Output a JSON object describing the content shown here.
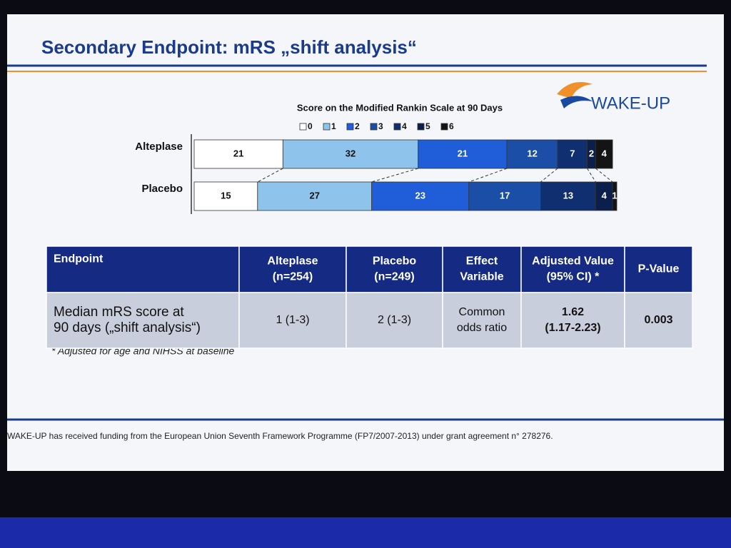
{
  "title": "Secondary Endpoint: mRS „shift analysis“",
  "logo": "WAKE-UP",
  "chart_data": {
    "type": "bar",
    "orientation": "horizontal",
    "stacked": true,
    "title": "Score on the Modified Rankin Scale at 90 Days",
    "categories": [
      "Alteplase",
      "Placebo"
    ],
    "series": [
      {
        "name": "0",
        "color": "#ffffff",
        "values": [
          21,
          15
        ]
      },
      {
        "name": "1",
        "color": "#8ec4ec",
        "values": [
          32,
          27
        ]
      },
      {
        "name": "2",
        "color": "#1f5ed8",
        "values": [
          21,
          23
        ]
      },
      {
        "name": "3",
        "color": "#1b4ea6",
        "values": [
          12,
          17
        ]
      },
      {
        "name": "4",
        "color": "#0f2f70",
        "values": [
          7,
          13
        ]
      },
      {
        "name": "5",
        "color": "#0b1f4c",
        "values": [
          2,
          4
        ]
      },
      {
        "name": "6",
        "color": "#141414",
        "values": [
          4,
          1
        ]
      }
    ]
  },
  "table": {
    "header": [
      [
        "Endpoint"
      ],
      [
        "Alteplase",
        "(n=254)"
      ],
      [
        "Placebo",
        "(n=249)"
      ],
      [
        "Effect",
        "Variable"
      ],
      [
        "Adjusted Value",
        "(95% CI) *"
      ],
      [
        "P-Value"
      ]
    ],
    "rows": [
      [
        [
          "Median mRS score at",
          "90 days („shift analysis“)"
        ],
        [
          "1 (1-3)"
        ],
        [
          "2 (1-3)"
        ],
        [
          "Common",
          "odds ratio"
        ],
        [
          "1.62",
          "(1.17-2.23)"
        ],
        [
          "0.003"
        ]
      ]
    ]
  },
  "footnote": "* Adjusted for age and NIHSS at baseline",
  "funding": "WAKE-UP has received funding from the European Union Seventh Framework Programme (FP7/2007-2013) under grant agreement n° 278276."
}
